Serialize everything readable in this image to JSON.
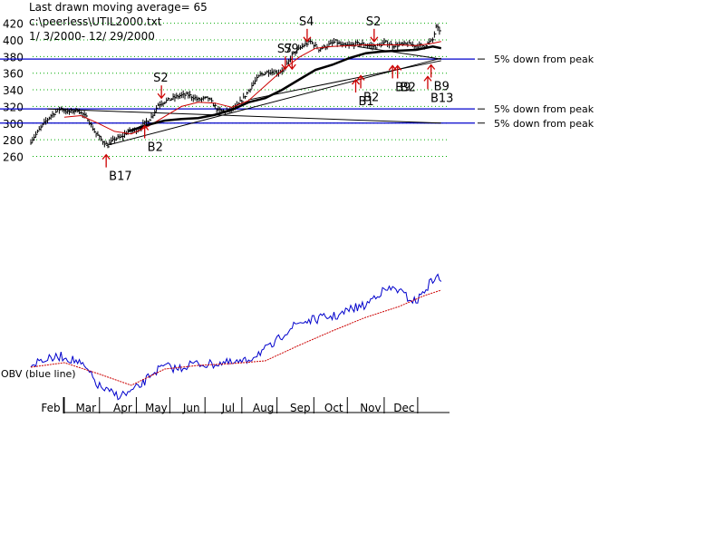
{
  "header": {
    "line1": "Last drawn moving average= 65",
    "line2": "c:\\peerless\\UTIL2000.txt",
    "line3": " 1/ 3/2000- 12/ 29/2000"
  },
  "colors": {
    "price": "#000000",
    "ma": "#000000",
    "ma_short": "#cc0000",
    "obv": "#0000cc",
    "obv_ma": "#cc0000",
    "peak_line": "#0000cc",
    "grid": "#00aa00",
    "arrow": "#cc0000",
    "trend": "#000000"
  },
  "chart_data": {
    "type": "line",
    "title": "Last drawn moving average= 65",
    "source": "c:\\peerless\\UTIL2000.txt",
    "date_range": " 1/ 3/2000- 12/ 29/2000",
    "x_unit": "trading day (0-250)",
    "ylim": [
      250,
      425
    ],
    "y_ticks": [
      260,
      280,
      300,
      320,
      340,
      360,
      380,
      400,
      420
    ],
    "months": [
      "Feb",
      "Mar",
      "Apr",
      "May",
      "Jun",
      "Jul",
      "Aug",
      "Sep",
      "Oct",
      "Nov",
      "Dec"
    ],
    "month_day": [
      20,
      41,
      63,
      83,
      104,
      126,
      147,
      169,
      189,
      211,
      231
    ],
    "price_anchors": [
      [
        0,
        278
      ],
      [
        8,
        300
      ],
      [
        12,
        309
      ],
      [
        18,
        318
      ],
      [
        22,
        313
      ],
      [
        28,
        316
      ],
      [
        34,
        305
      ],
      [
        38,
        290
      ],
      [
        42,
        280
      ],
      [
        46,
        273
      ],
      [
        50,
        281
      ],
      [
        54,
        283
      ],
      [
        58,
        290
      ],
      [
        64,
        292
      ],
      [
        68,
        300
      ],
      [
        72,
        307
      ],
      [
        76,
        322
      ],
      [
        80,
        326
      ],
      [
        85,
        330
      ],
      [
        89,
        333
      ],
      [
        94,
        334
      ],
      [
        100,
        328
      ],
      [
        106,
        330
      ],
      [
        112,
        315
      ],
      [
        117,
        314
      ],
      [
        122,
        318
      ],
      [
        127,
        330
      ],
      [
        132,
        345
      ],
      [
        137,
        358
      ],
      [
        142,
        362
      ],
      [
        148,
        361
      ],
      [
        152,
        366
      ],
      [
        156,
        382
      ],
      [
        162,
        392
      ],
      [
        167,
        398
      ],
      [
        172,
        389
      ],
      [
        176,
        392
      ],
      [
        182,
        398
      ],
      [
        186,
        393
      ],
      [
        190,
        393
      ],
      [
        196,
        396
      ],
      [
        202,
        393
      ],
      [
        206,
        392
      ],
      [
        212,
        397
      ],
      [
        216,
        393
      ],
      [
        220,
        394
      ],
      [
        225,
        395
      ],
      [
        230,
        393
      ],
      [
        235,
        393
      ],
      [
        240,
        400
      ],
      [
        242,
        415
      ],
      [
        244,
        412
      ]
    ],
    "ma65_anchors": [
      [
        58,
        290
      ],
      [
        70,
        298
      ],
      [
        80,
        303
      ],
      [
        90,
        305
      ],
      [
        100,
        306
      ],
      [
        110,
        310
      ],
      [
        120,
        316
      ],
      [
        130,
        325
      ],
      [
        140,
        330
      ],
      [
        150,
        340
      ],
      [
        160,
        352
      ],
      [
        170,
        364
      ],
      [
        180,
        370
      ],
      [
        190,
        378
      ],
      [
        200,
        384
      ],
      [
        210,
        386
      ],
      [
        220,
        387
      ],
      [
        230,
        388
      ],
      [
        240,
        392
      ],
      [
        245,
        390
      ]
    ],
    "ma21_anchors": [
      [
        20,
        307
      ],
      [
        30,
        309
      ],
      [
        40,
        300
      ],
      [
        50,
        290
      ],
      [
        60,
        287
      ],
      [
        70,
        296
      ],
      [
        80,
        308
      ],
      [
        90,
        320
      ],
      [
        100,
        325
      ],
      [
        110,
        324
      ],
      [
        120,
        319
      ],
      [
        130,
        327
      ],
      [
        140,
        345
      ],
      [
        150,
        363
      ],
      [
        160,
        379
      ],
      [
        170,
        390
      ],
      [
        180,
        392
      ],
      [
        190,
        393
      ],
      [
        200,
        394
      ],
      [
        210,
        394
      ],
      [
        220,
        394
      ],
      [
        230,
        393
      ],
      [
        240,
        396
      ],
      [
        245,
        398
      ]
    ],
    "obv": {
      "label": "OBV (blue line)",
      "anchors": [
        [
          0,
          403
        ],
        [
          6,
          397
        ],
        [
          12,
          396
        ],
        [
          18,
          393
        ],
        [
          22,
          395
        ],
        [
          28,
          399
        ],
        [
          34,
          409
        ],
        [
          40,
          425
        ],
        [
          46,
          432
        ],
        [
          52,
          436
        ],
        [
          58,
          434
        ],
        [
          66,
          425
        ],
        [
          72,
          412
        ],
        [
          80,
          404
        ],
        [
          88,
          407
        ],
        [
          96,
          401
        ],
        [
          106,
          402
        ],
        [
          114,
          400
        ],
        [
          120,
          401
        ],
        [
          128,
          399
        ],
        [
          136,
          389
        ],
        [
          144,
          382
        ],
        [
          152,
          366
        ],
        [
          160,
          356
        ],
        [
          168,
          353
        ],
        [
          176,
          350
        ],
        [
          184,
          348
        ],
        [
          192,
          340
        ],
        [
          200,
          337
        ],
        [
          206,
          325
        ],
        [
          212,
          320
        ],
        [
          218,
          318
        ],
        [
          224,
          327
        ],
        [
          230,
          333
        ],
        [
          236,
          318
        ],
        [
          242,
          304
        ],
        [
          245,
          311
        ]
      ],
      "ma_anchors": [
        [
          0,
          405
        ],
        [
          20,
          400
        ],
        [
          40,
          412
        ],
        [
          60,
          425
        ],
        [
          80,
          407
        ],
        [
          100,
          403
        ],
        [
          120,
          401
        ],
        [
          140,
          398
        ],
        [
          160,
          381
        ],
        [
          180,
          365
        ],
        [
          200,
          350
        ],
        [
          220,
          338
        ],
        [
          235,
          326
        ],
        [
          245,
          320
        ]
      ]
    },
    "peak_levels": [
      {
        "value": 377,
        "label": "5% down from peak"
      },
      {
        "value": 317,
        "label": "5% down from peak"
      },
      {
        "value": 300,
        "label": "5% down from peak"
      }
    ],
    "trendlines": [
      {
        "from": [
          45,
          273
        ],
        "to": [
          245,
          378
        ]
      },
      {
        "from": [
          10,
          317
        ],
        "to": [
          245,
          300
        ]
      },
      {
        "from": [
          130,
          328
        ],
        "to": [
          245,
          375
        ]
      },
      {
        "from": [
          195,
          392
        ],
        "to": [
          245,
          377
        ]
      }
    ],
    "signals": [
      {
        "label": "B17",
        "day": 45,
        "value": 262,
        "dir": "up"
      },
      {
        "label": "B2",
        "day": 68,
        "value": 297,
        "dir": "up"
      },
      {
        "label": "S2",
        "day": 78,
        "value": 330,
        "dir": "down"
      },
      {
        "label": "S7",
        "day": 152,
        "value": 365,
        "dir": "down"
      },
      {
        "label": "S9",
        "day": 156,
        "value": 365,
        "dir": "down"
      },
      {
        "label": "S4",
        "day": 165,
        "value": 398,
        "dir": "down"
      },
      {
        "label": "S2",
        "day": 205,
        "value": 398,
        "dir": "down"
      },
      {
        "label": "B1",
        "day": 194,
        "value": 352,
        "dir": "up"
      },
      {
        "label": "B2",
        "day": 197,
        "value": 357,
        "dir": "up"
      },
      {
        "label": "B9",
        "day": 216,
        "value": 369,
        "dir": "up"
      },
      {
        "label": "B2",
        "day": 219,
        "value": 369,
        "dir": "up"
      },
      {
        "label": "B9",
        "day": 239,
        "value": 370,
        "dir": "up"
      },
      {
        "label": "B13",
        "day": 237,
        "value": 356,
        "dir": "up"
      }
    ]
  }
}
